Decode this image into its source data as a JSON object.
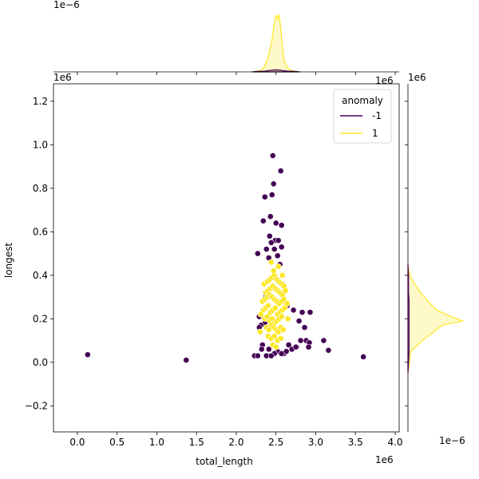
{
  "chart_data": {
    "type": "scatter",
    "xlabel": "total_length",
    "ylabel": "longest",
    "x_offset_text": "1e6",
    "y_offset_text": "1e6",
    "top_marginal_offset_text": "1e−6",
    "right_marginal_x_offset_text": "1e6",
    "right_marginal_offset_text": "1e6",
    "right_marginal_bottom_offset_text": "1e−6",
    "xlim": [
      -0.3,
      4.05
    ],
    "ylim": [
      -0.32,
      1.28
    ],
    "xticks": [
      "0.0",
      "0.5",
      "1.0",
      "1.5",
      "2.0",
      "2.5",
      "3.0",
      "3.5",
      "4.0"
    ],
    "yticks": [
      "−0.2",
      "0.0",
      "0.2",
      "0.4",
      "0.6",
      "0.8",
      "1.0",
      "1.2"
    ],
    "legend": {
      "title": "anomaly",
      "placement": "top-right",
      "entries": [
        {
          "label": "-1",
          "color": "#440154"
        },
        {
          "label": "1",
          "color": "#fde725"
        }
      ]
    },
    "series": [
      {
        "name": "-1",
        "color": "#440154",
        "x": [
          2.46,
          2.56,
          2.47,
          2.45,
          2.36,
          2.43,
          2.34,
          2.5,
          2.57,
          2.42,
          2.49,
          2.53,
          2.44,
          2.57,
          2.48,
          2.38,
          2.27,
          2.52,
          2.41,
          2.55,
          2.58,
          2.64,
          2.72,
          2.83,
          2.93,
          2.29,
          2.36,
          2.31,
          2.79,
          2.86,
          2.88,
          2.81,
          2.76,
          2.7,
          2.92,
          2.75,
          2.91,
          2.66,
          3.1,
          2.29,
          2.33,
          2.41,
          2.52,
          2.6,
          2.48,
          2.32,
          2.38,
          2.57,
          2.23,
          2.44,
          2.63,
          2.37,
          0.13,
          1.37,
          3.16,
          3.6,
          2.27
        ],
        "y": [
          0.95,
          0.88,
          0.82,
          0.77,
          0.76,
          0.67,
          0.65,
          0.64,
          0.63,
          0.58,
          0.56,
          0.56,
          0.55,
          0.53,
          0.52,
          0.52,
          0.5,
          0.49,
          0.48,
          0.45,
          0.36,
          0.26,
          0.24,
          0.23,
          0.23,
          0.21,
          0.18,
          0.17,
          0.19,
          0.16,
          0.1,
          0.1,
          0.07,
          0.06,
          0.09,
          0.07,
          0.07,
          0.08,
          0.1,
          0.16,
          0.08,
          0.06,
          0.05,
          0.04,
          0.04,
          0.06,
          0.03,
          0.04,
          0.03,
          0.03,
          0.05,
          0.3,
          0.035,
          0.01,
          0.055,
          0.025,
          0.03
        ]
      },
      {
        "name": "1",
        "color": "#fde725",
        "x": [
          2.35,
          2.39,
          2.42,
          2.45,
          2.48,
          2.51,
          2.54,
          2.57,
          2.6,
          2.37,
          2.4,
          2.43,
          2.46,
          2.49,
          2.52,
          2.55,
          2.58,
          2.62,
          2.33,
          2.36,
          2.39,
          2.42,
          2.45,
          2.48,
          2.51,
          2.54,
          2.57,
          2.6,
          2.34,
          2.37,
          2.4,
          2.43,
          2.46,
          2.49,
          2.52,
          2.55,
          2.58,
          2.61,
          2.36,
          2.39,
          2.42,
          2.45,
          2.48,
          2.51,
          2.54,
          2.57,
          2.38,
          2.41,
          2.44,
          2.47,
          2.5,
          2.53,
          2.56,
          2.59,
          2.4,
          2.44,
          2.48,
          2.52,
          2.56,
          2.46,
          2.5,
          2.31,
          2.64,
          2.3,
          2.65,
          2.47,
          2.53,
          2.44,
          2.58
        ],
        "y": [
          0.36,
          0.37,
          0.38,
          0.39,
          0.4,
          0.38,
          0.37,
          0.36,
          0.35,
          0.32,
          0.33,
          0.34,
          0.35,
          0.34,
          0.33,
          0.32,
          0.31,
          0.33,
          0.28,
          0.29,
          0.3,
          0.31,
          0.3,
          0.29,
          0.28,
          0.27,
          0.28,
          0.29,
          0.24,
          0.25,
          0.26,
          0.23,
          0.24,
          0.25,
          0.22,
          0.23,
          0.24,
          0.25,
          0.2,
          0.21,
          0.19,
          0.2,
          0.18,
          0.19,
          0.2,
          0.21,
          0.16,
          0.15,
          0.17,
          0.16,
          0.15,
          0.14,
          0.16,
          0.15,
          0.12,
          0.11,
          0.12,
          0.1,
          0.11,
          0.08,
          0.07,
          0.22,
          0.27,
          0.14,
          0.2,
          0.42,
          0.44,
          0.46,
          0.4
        ]
      }
    ],
    "marginal_x": {
      "note": "kde of total_length by anomaly",
      "grid": [
        2.2,
        2.3,
        2.35,
        2.4,
        2.45,
        2.48,
        2.5,
        2.52,
        2.54,
        2.56,
        2.58,
        2.6,
        2.65,
        2.7,
        2.8
      ],
      "density_1": [
        0.0,
        0.02,
        0.08,
        0.25,
        0.55,
        0.85,
        0.98,
        0.92,
        1.0,
        0.75,
        0.45,
        0.2,
        0.06,
        0.02,
        0.0
      ],
      "density_neg1": [
        0.0,
        0.01,
        0.01,
        0.02,
        0.03,
        0.03,
        0.04,
        0.03,
        0.03,
        0.03,
        0.02,
        0.02,
        0.01,
        0.01,
        0.0
      ]
    },
    "marginal_y": {
      "grid": [
        -0.05,
        0.05,
        0.1,
        0.14,
        0.17,
        0.19,
        0.21,
        0.24,
        0.28,
        0.32,
        0.36,
        0.4,
        0.45
      ],
      "density_1": [
        0.0,
        0.05,
        0.25,
        0.45,
        0.6,
        0.95,
        0.75,
        0.5,
        0.35,
        0.22,
        0.12,
        0.03,
        0.0
      ],
      "density_neg1": [
        0.0,
        0.02,
        0.02,
        0.02,
        0.02,
        0.02,
        0.02,
        0.02,
        0.02,
        0.01,
        0.01,
        0.01,
        0.0
      ]
    }
  }
}
